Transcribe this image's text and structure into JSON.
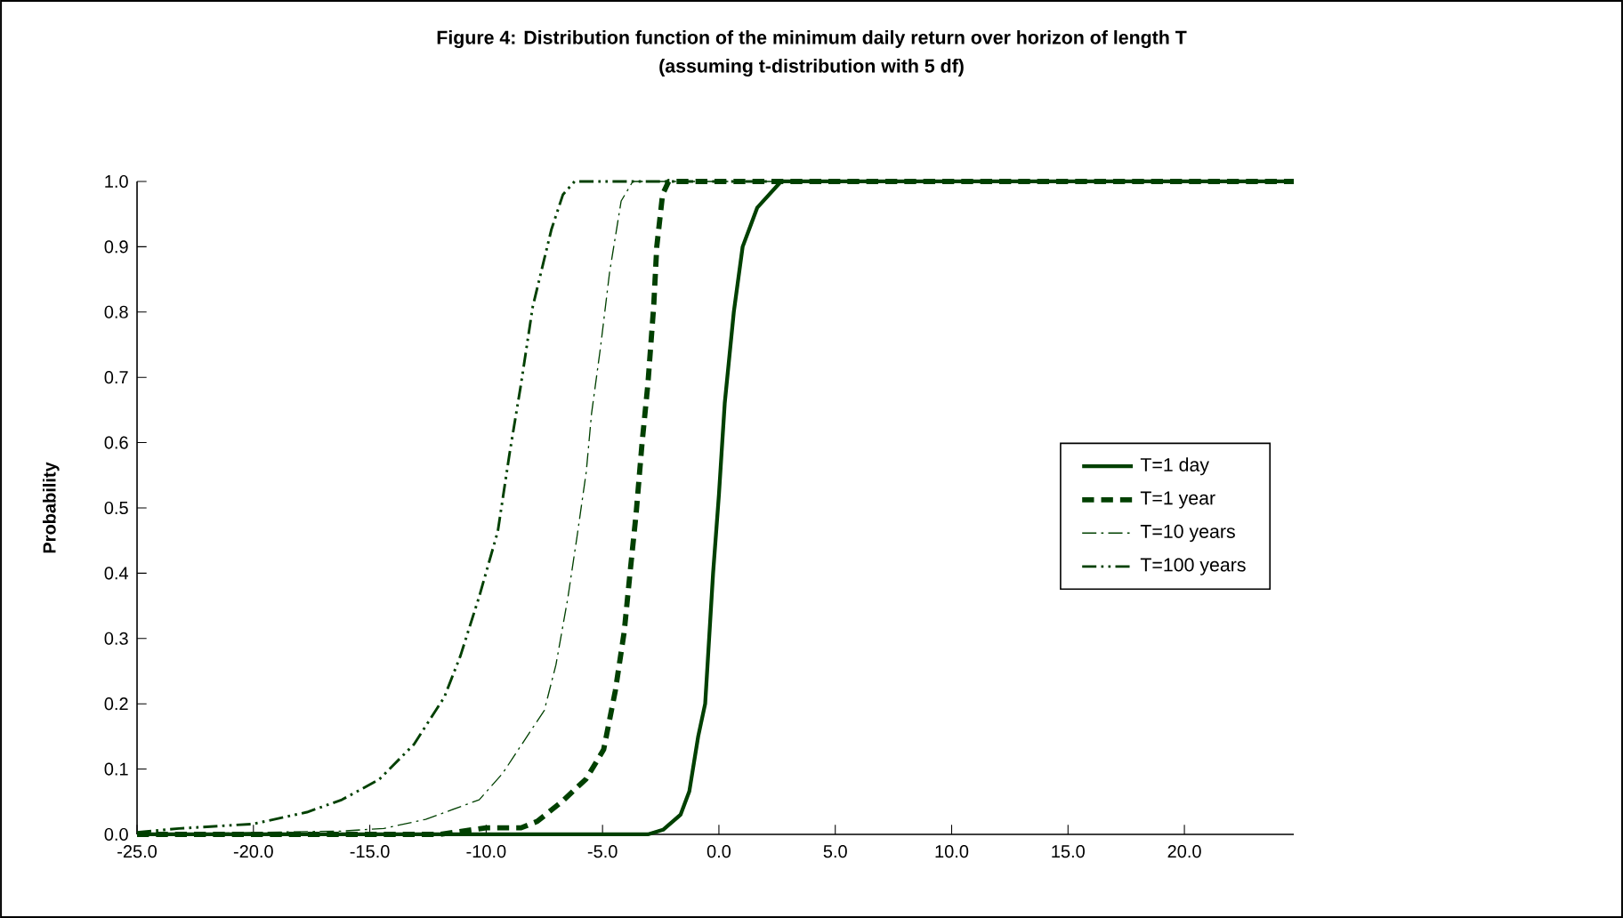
{
  "chart_data": {
    "type": "line",
    "title": "Figure 4:  Distribution function of the minimum daily return over horizon of length T",
    "subtitle": "(assuming t-distribution with 5 df)",
    "ylabel": "Probability",
    "xlim": [
      -25,
      24.7
    ],
    "ylim": [
      0,
      1
    ],
    "xticks": [
      {
        "value": -25,
        "label": "-25.0"
      },
      {
        "value": -20,
        "label": "-20.0"
      },
      {
        "value": -15,
        "label": "-15.0"
      },
      {
        "value": -10,
        "label": "-10.0"
      },
      {
        "value": -5,
        "label": "-5.0"
      },
      {
        "value": 0,
        "label": "0.0"
      },
      {
        "value": 5,
        "label": "5.0"
      },
      {
        "value": 10,
        "label": "10.0"
      },
      {
        "value": 15,
        "label": "15.0"
      },
      {
        "value": 20,
        "label": "20.0"
      }
    ],
    "yticks": [
      {
        "value": 0,
        "label": "0.0"
      },
      {
        "value": 0.1,
        "label": "0.1"
      },
      {
        "value": 0.2,
        "label": "0.2"
      },
      {
        "value": 0.3,
        "label": "0.3"
      },
      {
        "value": 0.4,
        "label": "0.4"
      },
      {
        "value": 0.5,
        "label": "0.5"
      },
      {
        "value": 0.6,
        "label": "0.6"
      },
      {
        "value": 0.7,
        "label": "0.7"
      },
      {
        "value": 0.8,
        "label": "0.8"
      },
      {
        "value": 0.9,
        "label": "0.9"
      },
      {
        "value": 1,
        "label": "1.0"
      }
    ],
    "legend": "right",
    "grid": false,
    "series": [
      {
        "name": "T=1 day",
        "color": "#004000",
        "line_style": "solid",
        "x": [
          -25,
          -3.05,
          -2.4,
          -1.65,
          -1.27,
          -0.89,
          -0.59,
          -0.25,
          0,
          0.25,
          0.64,
          1.02,
          1.65,
          2.67,
          24.7
        ],
        "values": [
          0,
          0,
          0.007,
          0.03,
          0.066,
          0.15,
          0.2,
          0.4,
          0.52,
          0.66,
          0.8,
          0.9,
          0.96,
          1,
          1
        ]
      },
      {
        "name": "T=1 year",
        "color": "#004000",
        "line_style": "dashed",
        "x": [
          -25,
          -12,
          -10,
          -8.5,
          -7.8,
          -6.75,
          -5.7,
          -4.95,
          -4.45,
          -4.07,
          -3.82,
          -3.56,
          -3.3,
          -3.05,
          -2.8,
          -2.67,
          -2.42,
          -2.16,
          24.7
        ],
        "values": [
          0,
          0,
          0.01,
          0.01,
          0.02,
          0.05,
          0.085,
          0.13,
          0.22,
          0.31,
          0.4,
          0.49,
          0.6,
          0.69,
          0.81,
          0.9,
          0.98,
          1,
          1
        ]
      },
      {
        "name": "T=10 years",
        "color": "#004000",
        "line_style": "dashdot",
        "x": [
          -25,
          -16.2,
          -14.4,
          -12.6,
          -10.3,
          -9.3,
          -8.3,
          -7.5,
          -7.0,
          -6.5,
          -6.1,
          -5.7,
          -5.47,
          -5.09,
          -4.7,
          -4.2,
          -3.7,
          24.7
        ],
        "values": [
          0,
          0.005,
          0.009,
          0.023,
          0.053,
          0.093,
          0.147,
          0.19,
          0.26,
          0.36,
          0.455,
          0.555,
          0.645,
          0.745,
          0.86,
          0.97,
          1,
          1
        ]
      },
      {
        "name": "T=100 years",
        "color": "#004000",
        "line_style": "dashdotdot",
        "x": [
          -25,
          -23.2,
          -20,
          -17.7,
          -16.2,
          -14.6,
          -13.1,
          -11.8,
          -11.1,
          -10.3,
          -9.5,
          -9.0,
          -8.5,
          -8.0,
          -7.2,
          -6.7,
          -6.2,
          24.7
        ],
        "values": [
          0.003,
          0.009,
          0.016,
          0.034,
          0.053,
          0.084,
          0.138,
          0.21,
          0.274,
          0.364,
          0.464,
          0.582,
          0.69,
          0.808,
          0.926,
          0.98,
          1,
          1
        ]
      }
    ]
  }
}
